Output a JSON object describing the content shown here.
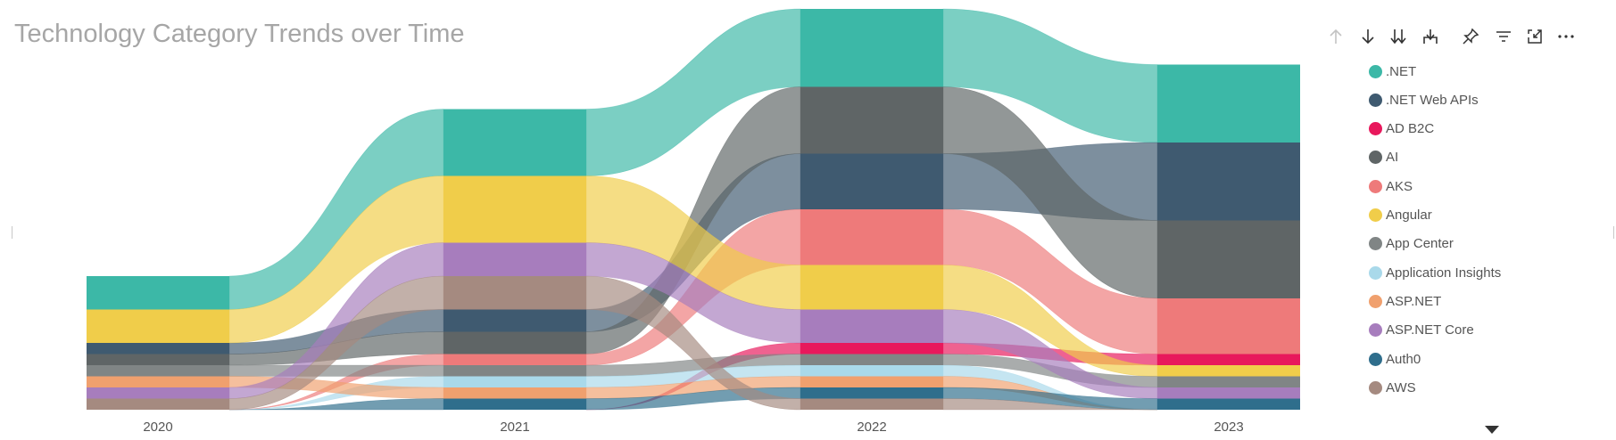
{
  "title": "Technology Category Trends over Time",
  "header_icons": [
    "arrow-up-icon",
    "arrow-down-icon",
    "double-arrow-down-icon",
    "expand-hierarchy-icon",
    "pin-icon",
    "filter-icon",
    "focus-mode-icon",
    "more-options-icon"
  ],
  "chart_data": {
    "type": "area",
    "subtype": "ribbon",
    "title": "Technology Category Trends over Time",
    "xlabel": "",
    "ylabel": "",
    "x": [
      "2020",
      "2021",
      "2022",
      "2023"
    ],
    "legend_position": "right",
    "series": [
      {
        "name": ".NET",
        "color": "#3cb8a7",
        "values": [
          3,
          6,
          7,
          7
        ]
      },
      {
        "name": ".NET Web APIs",
        "color": "#3f5a70",
        "values": [
          1,
          2,
          5,
          7
        ]
      },
      {
        "name": "AD B2C",
        "color": "#e8185c",
        "values": [
          0,
          0,
          1,
          1
        ]
      },
      {
        "name": "AI",
        "color": "#5f6566",
        "values": [
          1,
          2,
          6,
          7
        ]
      },
      {
        "name": "AKS",
        "color": "#ee7a7a",
        "values": [
          0,
          1,
          5,
          5
        ]
      },
      {
        "name": "Angular",
        "color": "#f0cd4a",
        "values": [
          3,
          6,
          4,
          1
        ]
      },
      {
        "name": "App Center",
        "color": "#808585",
        "values": [
          1,
          1,
          1,
          1
        ]
      },
      {
        "name": "Application Insights",
        "color": "#a9d9ea",
        "values": [
          0,
          1,
          1,
          0
        ]
      },
      {
        "name": "ASP.NET",
        "color": "#f0a06e",
        "values": [
          1,
          1,
          1,
          0
        ]
      },
      {
        "name": "ASP.NET Core",
        "color": "#a77dbd",
        "values": [
          1,
          3,
          3,
          1
        ]
      },
      {
        "name": "Auth0",
        "color": "#2f6e8c",
        "values": [
          0,
          1,
          1,
          1
        ]
      },
      {
        "name": "AWS",
        "color": "#a58a80",
        "values": [
          1,
          3,
          1,
          0
        ]
      }
    ]
  },
  "legend_scroll_label": ""
}
